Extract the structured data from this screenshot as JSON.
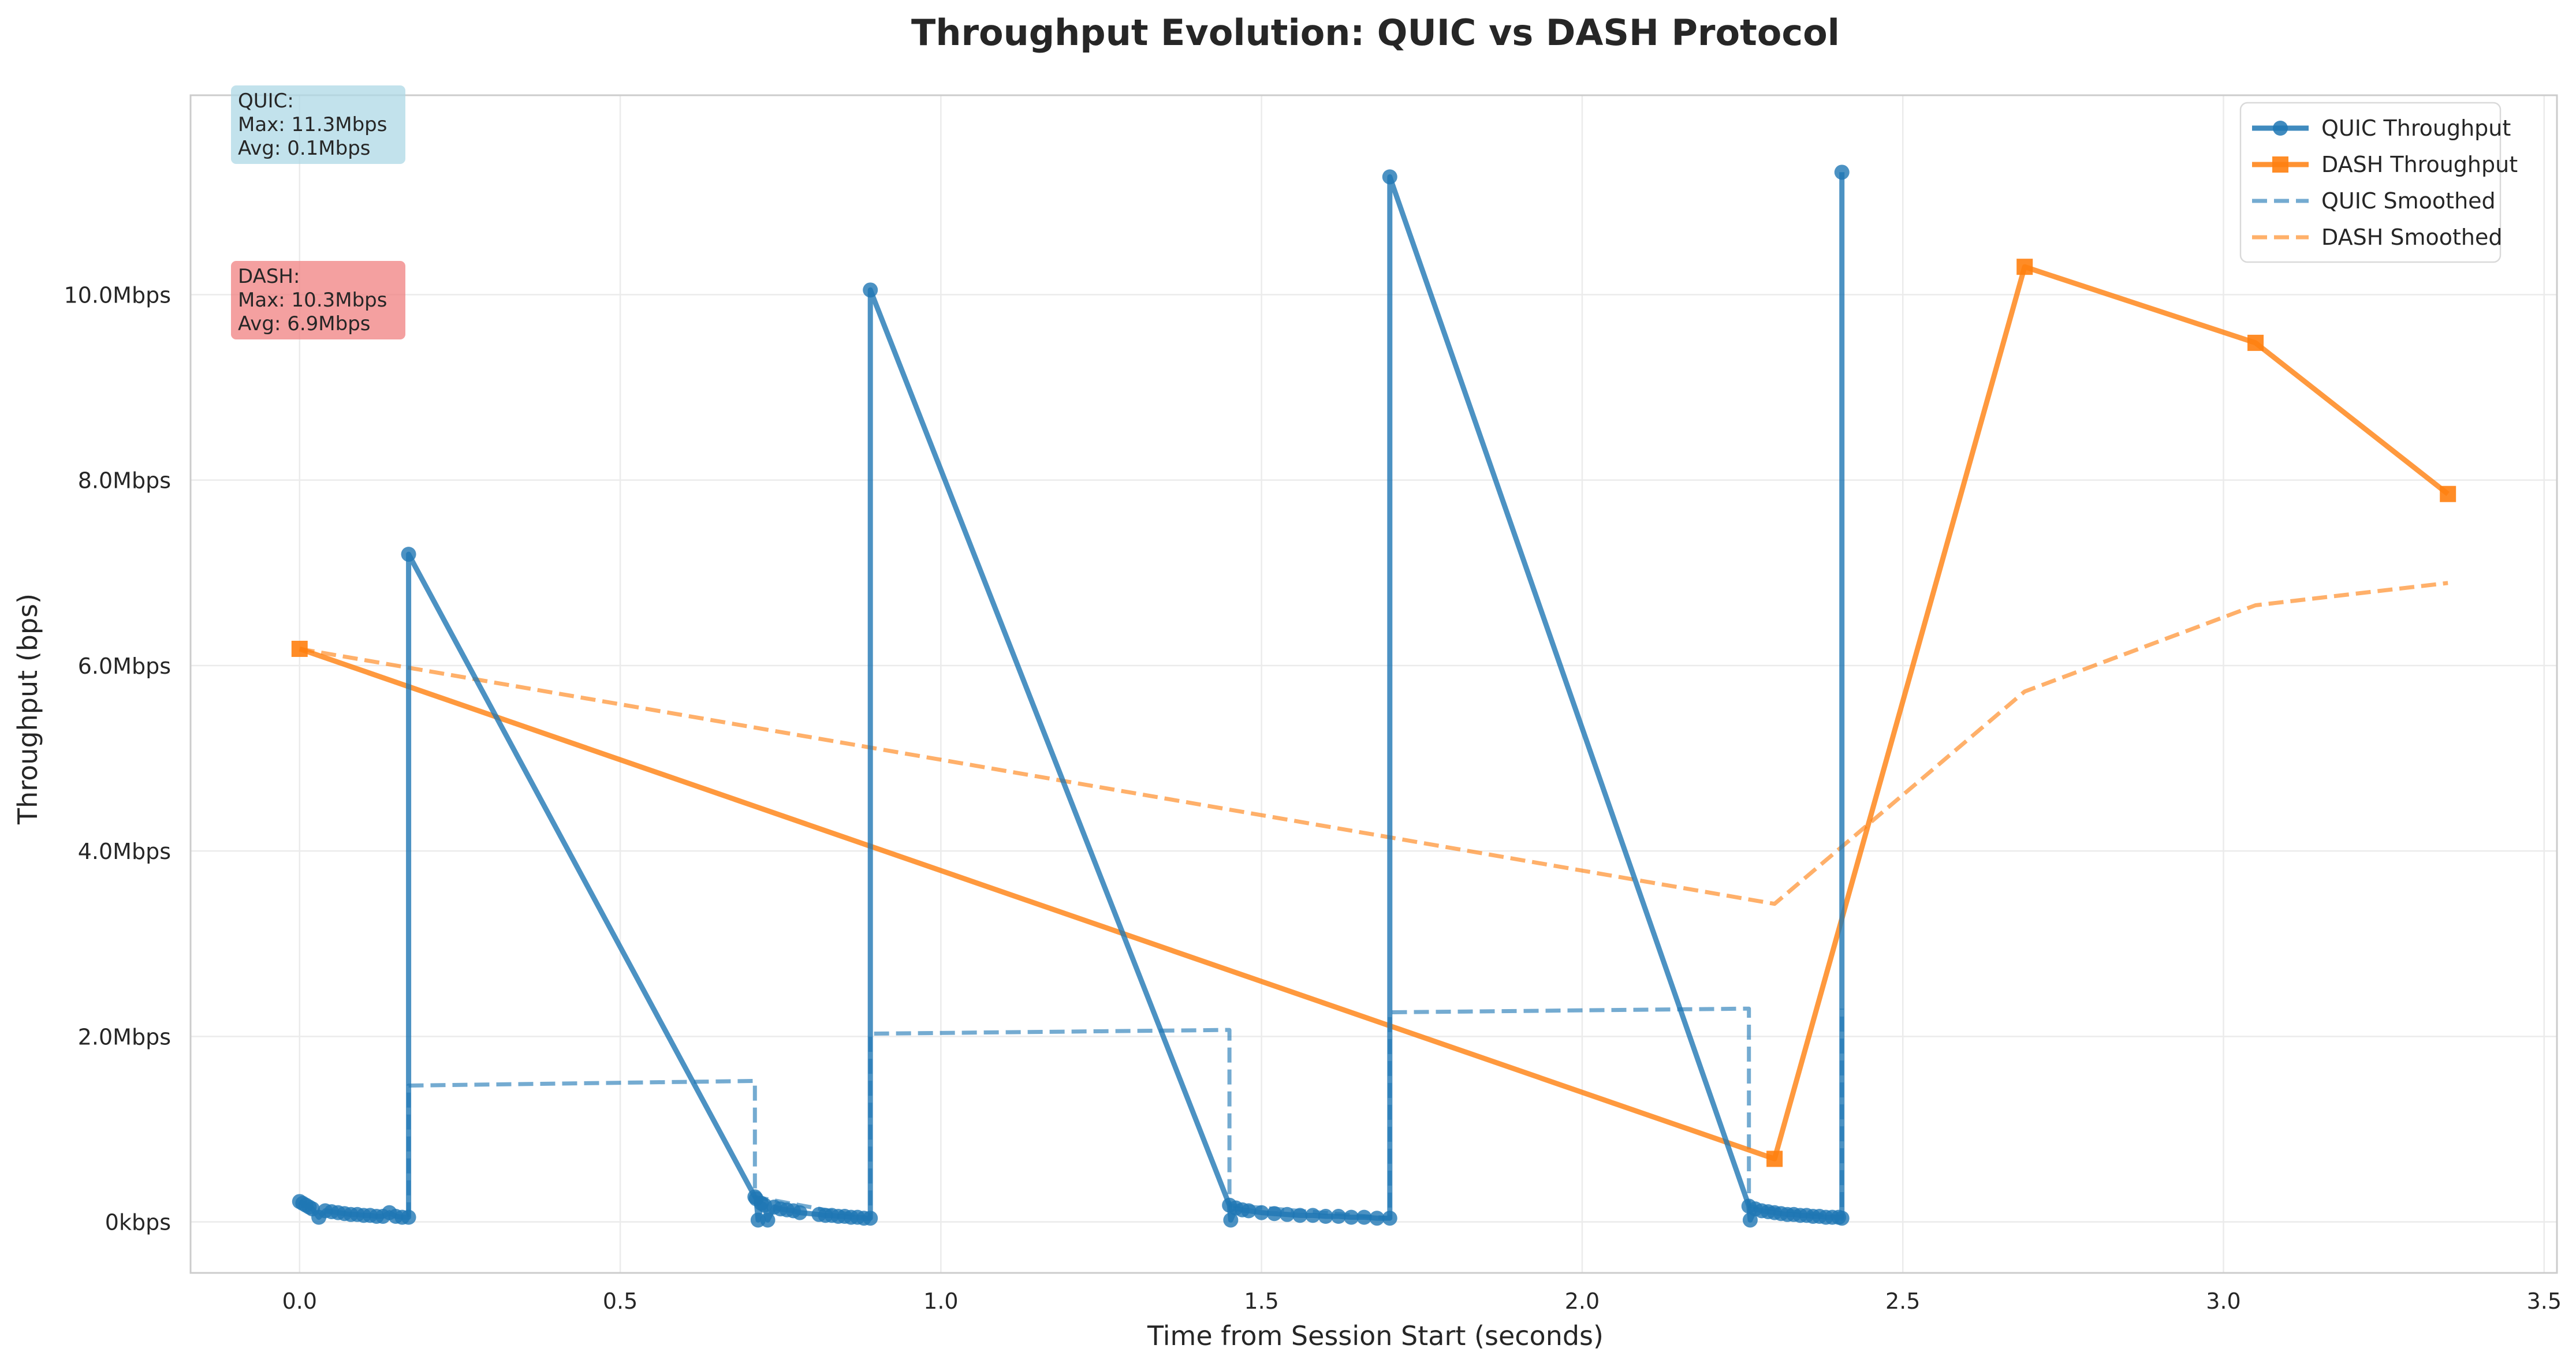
{
  "chart_data": {
    "type": "line",
    "title": "Throughput Evolution: QUIC vs DASH Protocol",
    "xlabel": "Time from Session Start (seconds)",
    "ylabel": "Throughput (bps)",
    "xlim": [
      -0.17,
      3.52
    ],
    "ylim": [
      -0.55,
      12.15
    ],
    "xticks": [
      0.0,
      0.5,
      1.0,
      1.5,
      2.0,
      2.5,
      3.0,
      3.5
    ],
    "xtick_labels": [
      "0.0",
      "0.5",
      "1.0",
      "1.5",
      "2.0",
      "2.5",
      "3.0",
      "3.5"
    ],
    "yticks": [
      0,
      2,
      4,
      6,
      8,
      10
    ],
    "ytick_labels": [
      "0kbps",
      "2.0Mbps",
      "4.0Mbps",
      "6.0Mbps",
      "8.0Mbps",
      "10.0Mbps"
    ],
    "grid": true,
    "legend_position": "top-right",
    "series": [
      {
        "name": "QUIC Throughput",
        "color": "#1f77b4",
        "style": "solid",
        "marker": "circle",
        "x": [
          0.0,
          0.005,
          0.01,
          0.015,
          0.02,
          0.03,
          0.04,
          0.05,
          0.06,
          0.07,
          0.08,
          0.09,
          0.1,
          0.11,
          0.12,
          0.13,
          0.14,
          0.15,
          0.16,
          0.17,
          0.17,
          0.71,
          0.712,
          0.715,
          0.72,
          0.725,
          0.73,
          0.74,
          0.75,
          0.76,
          0.77,
          0.78,
          0.81,
          0.82,
          0.83,
          0.84,
          0.85,
          0.86,
          0.87,
          0.88,
          0.89,
          0.89,
          1.45,
          1.452,
          1.46,
          1.47,
          1.48,
          1.5,
          1.52,
          1.54,
          1.56,
          1.58,
          1.6,
          1.62,
          1.64,
          1.66,
          1.68,
          1.7,
          1.7,
          2.26,
          2.262,
          2.27,
          2.28,
          2.29,
          2.3,
          2.31,
          2.32,
          2.33,
          2.34,
          2.35,
          2.36,
          2.37,
          2.38,
          2.39,
          2.4,
          2.405,
          2.405
        ],
        "y": [
          0.22,
          0.2,
          0.18,
          0.16,
          0.14,
          0.05,
          0.12,
          0.11,
          0.1,
          0.09,
          0.08,
          0.08,
          0.07,
          0.07,
          0.06,
          0.06,
          0.1,
          0.06,
          0.05,
          0.05,
          7.2,
          0.27,
          0.25,
          0.02,
          0.2,
          0.18,
          0.02,
          0.16,
          0.14,
          0.13,
          0.12,
          0.1,
          0.08,
          0.07,
          0.07,
          0.06,
          0.06,
          0.05,
          0.05,
          0.04,
          0.04,
          10.05,
          0.18,
          0.02,
          0.15,
          0.13,
          0.12,
          0.1,
          0.09,
          0.08,
          0.07,
          0.07,
          0.06,
          0.06,
          0.05,
          0.05,
          0.04,
          0.04,
          11.27,
          0.17,
          0.02,
          0.14,
          0.12,
          0.11,
          0.1,
          0.09,
          0.08,
          0.08,
          0.07,
          0.07,
          0.06,
          0.06,
          0.05,
          0.05,
          0.05,
          0.04,
          11.32
        ]
      },
      {
        "name": "DASH Throughput",
        "color": "#ff7f0e",
        "style": "solid",
        "marker": "square",
        "x": [
          0.0,
          2.3,
          2.69,
          3.05,
          3.35
        ],
        "y": [
          6.18,
          0.68,
          10.3,
          9.48,
          7.85
        ]
      },
      {
        "name": "QUIC Smoothed",
        "color": "#1f77b4",
        "style": "dashed",
        "x": [
          0.17,
          0.17,
          0.71,
          0.71,
          0.89,
          0.89,
          1.45,
          1.45,
          1.7,
          1.7,
          2.26,
          2.26,
          2.405,
          2.405
        ],
        "y": [
          0.05,
          1.47,
          1.52,
          0.27,
          0.04,
          2.03,
          2.07,
          0.18,
          0.04,
          2.26,
          2.3,
          0.17,
          0.05,
          2.3
        ]
      },
      {
        "name": "DASH Smoothed",
        "color": "#ff7f0e",
        "style": "dashed",
        "x": [
          0.0,
          2.3,
          2.69,
          3.05,
          3.35
        ],
        "y": [
          6.18,
          3.43,
          5.72,
          6.65,
          6.89
        ]
      }
    ],
    "annotations": [
      {
        "id": "quic",
        "lines": [
          "QUIC:",
          "Max: 11.3Mbps",
          "Avg: 0.1Mbps"
        ],
        "color": "#add8e6"
      },
      {
        "id": "dash",
        "lines": [
          "DASH:",
          "Max: 10.3Mbps",
          "Avg: 6.9Mbps"
        ],
        "color": "#f08080"
      }
    ]
  }
}
